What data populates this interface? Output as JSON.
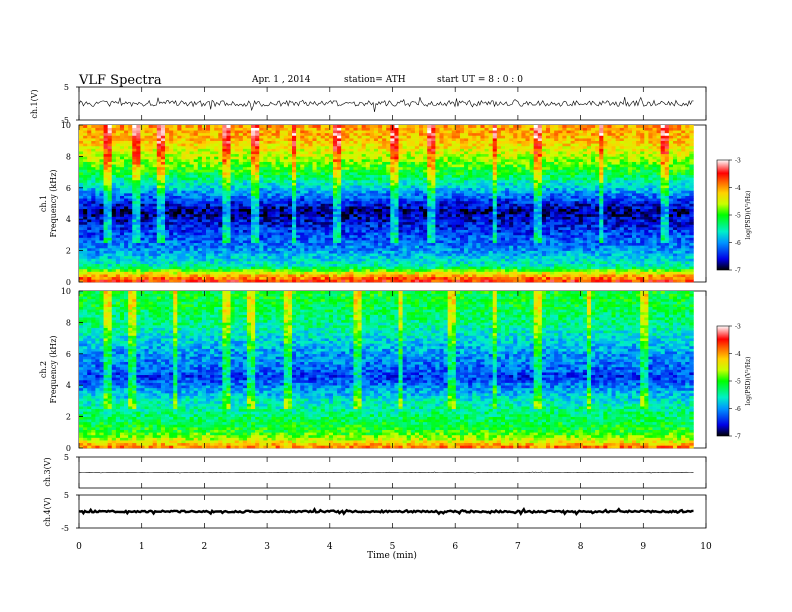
{
  "header": {
    "title": "VLF  Spectra",
    "date": "Apr. 1  , 2014",
    "station": "station= ATH",
    "start": "start  UT  =   8  : 0  : 0"
  },
  "colorbar": {
    "label": "log(PSD)(V²/Hz)",
    "ticks": [
      -7,
      -6,
      -5,
      -4,
      -3
    ],
    "colors": [
      "#000000",
      "#0000e6",
      "#0096ff",
      "#00f0c8",
      "#00ff00",
      "#c8ff00",
      "#ffd200",
      "#ff6400",
      "#ff0000",
      "#ff9696",
      "#ffffff"
    ]
  },
  "chart_data": [
    {
      "type": "line",
      "name": "ch1-waveform",
      "ylabel": "ch.1(V)",
      "ylim": [
        -5,
        5
      ],
      "yticks": [
        5,
        -5
      ],
      "x": [
        0,
        1,
        2,
        3,
        4,
        5,
        6,
        7,
        8,
        9,
        9.8
      ],
      "values": [
        0,
        0,
        0,
        0,
        0,
        0,
        0,
        0,
        0,
        0,
        0
      ],
      "amplitude_approx": 1.5
    },
    {
      "type": "heatmap",
      "name": "ch1-spectrogram",
      "ylabel": "ch.1\nFrequency (kHz)",
      "ylim": [
        0,
        10
      ],
      "yticks": [
        0,
        2,
        4,
        6,
        8,
        10
      ],
      "xlim": [
        0,
        9.8
      ],
      "profile_freq_khz": [
        0,
        0.5,
        1,
        2,
        3,
        4,
        4.5,
        5,
        6,
        7,
        8,
        9,
        10
      ],
      "profile_logpsd": [
        -3.5,
        -4.2,
        -5.5,
        -6.0,
        -6.3,
        -6.6,
        -6.8,
        -6.5,
        -5.8,
        -5.1,
        -4.6,
        -4.2,
        -4.0
      ],
      "spike_times_min": [
        0.4,
        0.9,
        1.3,
        2.3,
        2.8,
        3.4,
        4.1,
        5.0,
        5.6,
        6.6,
        7.3,
        8.3,
        9.3
      ]
    },
    {
      "type": "heatmap",
      "name": "ch2-spectrogram",
      "ylabel": "ch.2\nFrequency (kHz)",
      "ylim": [
        0,
        10
      ],
      "yticks": [
        0,
        2,
        4,
        6,
        8,
        10
      ],
      "xlim": [
        0,
        9.8
      ],
      "profile_freq_khz": [
        0,
        0.5,
        1,
        2,
        3,
        4,
        4.5,
        5,
        6,
        7,
        8,
        9,
        10
      ],
      "profile_logpsd": [
        -3.8,
        -4.5,
        -5.0,
        -5.3,
        -5.6,
        -6.1,
        -6.4,
        -6.2,
        -6.0,
        -5.7,
        -5.4,
        -5.2,
        -5.1
      ],
      "spike_times_min": [
        0.4,
        0.8,
        1.5,
        2.3,
        2.7,
        3.3,
        4.4,
        5.1,
        5.9,
        6.6,
        7.3,
        8.1,
        9.0
      ]
    },
    {
      "type": "line",
      "name": "ch3-waveform",
      "ylabel": "ch.3(V)",
      "ylim": [
        -5,
        5
      ],
      "yticks": [
        5
      ],
      "x": [
        0,
        9.8
      ],
      "values": [
        0,
        0
      ],
      "amplitude_approx": 0.1
    },
    {
      "type": "line",
      "name": "ch4-waveform",
      "ylabel": "ch.4(V)",
      "ylim": [
        -5,
        5
      ],
      "yticks": [
        5,
        -5
      ],
      "x": [
        0,
        9.8
      ],
      "values": [
        0,
        0
      ],
      "amplitude_approx": 0.4
    }
  ],
  "xaxis": {
    "label": "Time  (min)",
    "ticks": [
      0,
      1,
      2,
      3,
      4,
      5,
      6,
      7,
      8,
      9,
      10
    ],
    "xlim": [
      0,
      10
    ],
    "data_end": 9.8
  }
}
